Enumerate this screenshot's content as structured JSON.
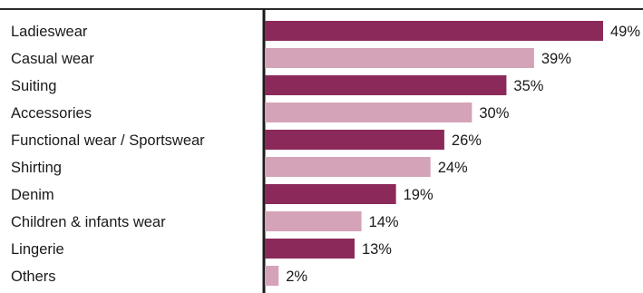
{
  "chart_data": {
    "type": "bar",
    "orientation": "horizontal",
    "categories": [
      "Ladieswear",
      "Casual wear",
      "Suiting",
      "Accessories",
      "Functional wear / Sportswear",
      "Shirting",
      "Denim",
      "Children & infants wear",
      "Lingerie",
      "Others"
    ],
    "values": [
      49,
      39,
      35,
      30,
      26,
      24,
      19,
      14,
      13,
      2
    ],
    "value_labels": [
      "49%",
      "39%",
      "35%",
      "30%",
      "26%",
      "24%",
      "19%",
      "14%",
      "13%",
      "2%"
    ],
    "unit": "%",
    "colors": [
      "#8b2a5a",
      "#d4a3b8"
    ],
    "title": "",
    "xlabel": "",
    "ylabel": "",
    "xlim": [
      0,
      50
    ],
    "grid": false,
    "legend": "none"
  }
}
